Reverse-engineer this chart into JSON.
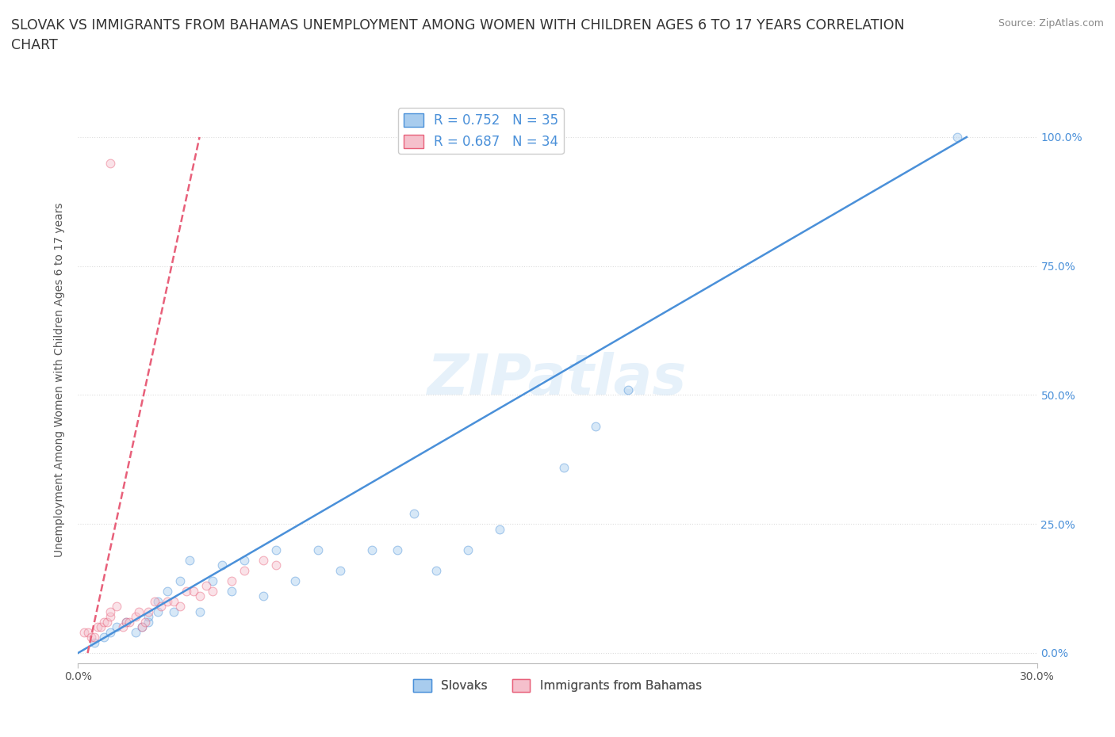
{
  "title": "SLOVAK VS IMMIGRANTS FROM BAHAMAS UNEMPLOYMENT AMONG WOMEN WITH CHILDREN AGES 6 TO 17 YEARS CORRELATION\nCHART",
  "source": "Source: ZipAtlas.com",
  "ylabel": "Unemployment Among Women with Children Ages 6 to 17 years",
  "xlim": [
    0,
    0.3
  ],
  "ylim": [
    -0.02,
    1.08
  ],
  "ytick_labels": [
    "0.0%",
    "25.0%",
    "50.0%",
    "75.0%",
    "100.0%"
  ],
  "ytick_values": [
    0,
    0.25,
    0.5,
    0.75,
    1.0
  ],
  "blue_color": "#A8CCEE",
  "pink_color": "#F5C0CC",
  "blue_line_color": "#4A90D9",
  "pink_line_color": "#E8607A",
  "legend_blue_text": "R = 0.752   N = 35",
  "legend_pink_text": "R = 0.687   N = 34",
  "legend_label_blue": "Slovaks",
  "legend_label_pink": "Immigrants from Bahamas",
  "watermark": "ZIPatlas",
  "blue_scatter_x": [
    0.005,
    0.008,
    0.01,
    0.012,
    0.015,
    0.018,
    0.02,
    0.022,
    0.022,
    0.025,
    0.025,
    0.028,
    0.03,
    0.032,
    0.035,
    0.038,
    0.042,
    0.045,
    0.048,
    0.052,
    0.058,
    0.062,
    0.068,
    0.075,
    0.082,
    0.092,
    0.1,
    0.105,
    0.112,
    0.122,
    0.132,
    0.152,
    0.162,
    0.172,
    0.275
  ],
  "blue_scatter_y": [
    0.02,
    0.03,
    0.04,
    0.05,
    0.06,
    0.04,
    0.05,
    0.06,
    0.07,
    0.08,
    0.1,
    0.12,
    0.08,
    0.14,
    0.18,
    0.08,
    0.14,
    0.17,
    0.12,
    0.18,
    0.11,
    0.2,
    0.14,
    0.2,
    0.16,
    0.2,
    0.2,
    0.27,
    0.16,
    0.2,
    0.24,
    0.36,
    0.44,
    0.51,
    1.0
  ],
  "pink_scatter_x": [
    0.002,
    0.003,
    0.004,
    0.005,
    0.006,
    0.007,
    0.008,
    0.009,
    0.01,
    0.01,
    0.012,
    0.014,
    0.015,
    0.016,
    0.018,
    0.019,
    0.02,
    0.021,
    0.022,
    0.024,
    0.026,
    0.028,
    0.03,
    0.032,
    0.034,
    0.036,
    0.038,
    0.04,
    0.042,
    0.048,
    0.052,
    0.058,
    0.062,
    0.01
  ],
  "pink_scatter_y": [
    0.04,
    0.04,
    0.03,
    0.03,
    0.05,
    0.05,
    0.06,
    0.06,
    0.07,
    0.08,
    0.09,
    0.05,
    0.06,
    0.06,
    0.07,
    0.08,
    0.05,
    0.06,
    0.08,
    0.1,
    0.09,
    0.1,
    0.1,
    0.09,
    0.12,
    0.12,
    0.11,
    0.13,
    0.12,
    0.14,
    0.16,
    0.18,
    0.17,
    0.95
  ],
  "blue_line_x": [
    0.0,
    0.278
  ],
  "blue_line_y": [
    0.0,
    1.0
  ],
  "pink_line_x": [
    0.003,
    0.038
  ],
  "pink_line_y": [
    0.0,
    1.0
  ],
  "background_color": "#FFFFFF",
  "grid_color": "#DDDDDD",
  "title_fontsize": 12.5,
  "axis_fontsize": 10,
  "tick_fontsize": 10,
  "scatter_size": 60,
  "scatter_alpha": 0.45,
  "line_width": 1.8
}
